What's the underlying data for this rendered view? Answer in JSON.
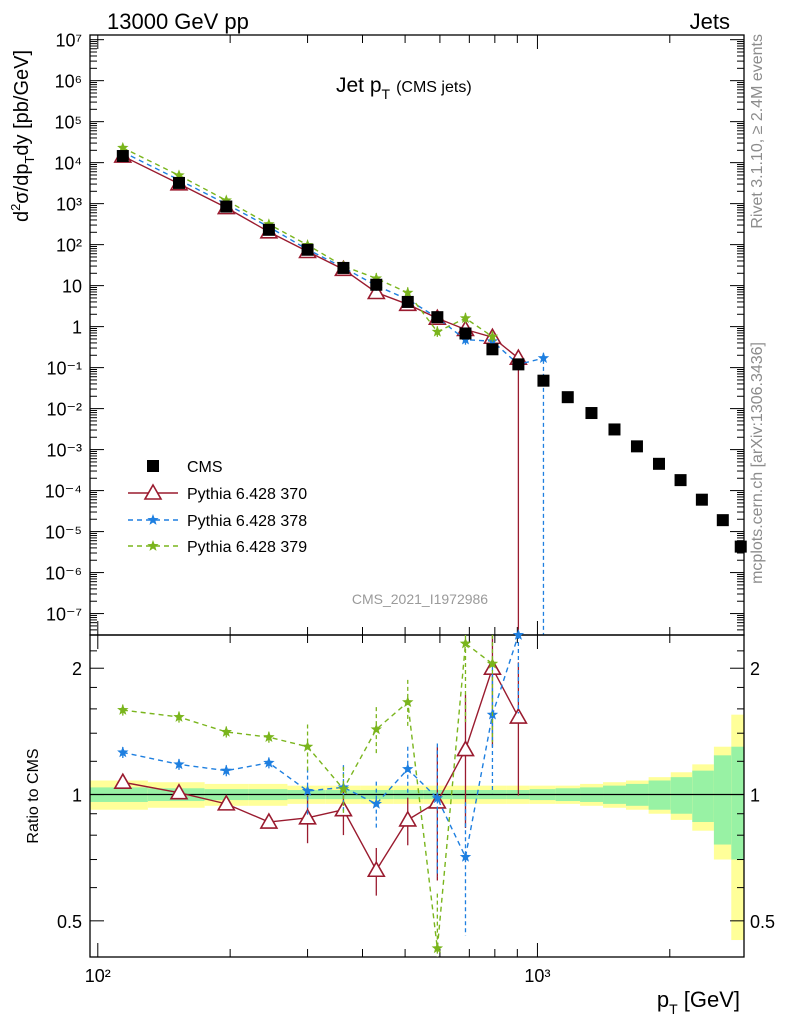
{
  "header": {
    "left": "13000 GeV pp",
    "right": "Jets"
  },
  "side_labels": {
    "rivet": "Rivet 3.1.10, ≥ 2.4M events",
    "mcplots": "mcplots.cern.ch [arXiv:1306.3436]"
  },
  "chart_data": [
    {
      "type": "scatter",
      "title": "Jet p",
      "title_sub": "T",
      "title_suffix": "(CMS jets)",
      "watermark": "CMS_2021_I1972986",
      "xscale": "log",
      "yscale": "log",
      "xlim": [
        96,
        2950
      ],
      "ylim": [
        3e-08,
        13000000.0
      ],
      "ylabel": "d²σ/dp_T dy [pb/GeV]",
      "ytick_labels": {
        "1e7": "10⁷",
        "1e6": "10⁶",
        "1e5": "10⁵",
        "1e4": "10⁴",
        "1e3": "10³",
        "1e2": "10²",
        "10": "10",
        "1": "1",
        "1e-1": "10⁻¹",
        "1e-2": "10⁻²",
        "1e-3": "10⁻³",
        "1e-4": "10⁻⁴",
        "1e-5": "10⁻⁵",
        "1e-6": "10⁻⁶",
        "1e-7": "10⁻⁷"
      },
      "legend_position": "lower-left",
      "series": [
        {
          "name": "CMS",
          "color": "#000000",
          "marker": "square",
          "x": [
            114,
            153,
            196,
            245,
            300,
            362,
            430,
            507,
            592,
            686,
            790,
            905,
            1032,
            1172,
            1327,
            1497,
            1684,
            1890,
            2116,
            2366,
            2640,
            2900
          ],
          "y": [
            14500,
            3200,
            850,
            230,
            75,
            27,
            10.5,
            4.0,
            1.7,
            0.68,
            0.28,
            0.12,
            0.048,
            0.019,
            0.0078,
            0.0031,
            0.0012,
            0.00045,
            0.00018,
            6e-05,
            1.9e-05,
            4.3e-06
          ]
        },
        {
          "name": "Pythia 6.428 370",
          "color": "#9a1b2f",
          "marker": "triangle",
          "x": [
            114,
            153,
            196,
            245,
            300,
            362,
            430,
            507,
            592,
            686,
            790,
            905
          ],
          "y": [
            14500,
            3050,
            800,
            205,
            68,
            25,
            6.8,
            3.5,
            1.6,
            0.85,
            0.55,
            0.17
          ]
        },
        {
          "name": "Pythia 6.428 378",
          "color": "#1e7fe0",
          "marker": "star",
          "x": [
            114,
            153,
            196,
            245,
            300,
            362,
            430,
            507,
            592,
            686,
            790,
            905,
            1032
          ],
          "y": [
            18200,
            3800,
            980,
            270,
            76,
            27.5,
            10,
            4.6,
            1.65,
            0.48,
            0.44,
            0.12,
            0.17
          ]
        },
        {
          "name": "Pythia 6.428 379",
          "color": "#7ab51d",
          "marker": "star",
          "x": [
            114,
            153,
            196,
            245,
            300,
            362,
            430,
            507,
            592,
            686,
            790
          ],
          "y": [
            23000,
            4900,
            1200,
            315,
            98,
            30,
            15,
            6.7,
            0.75,
            1.6,
            0.57
          ]
        }
      ]
    },
    {
      "type": "line",
      "ylabel": "Ratio to CMS",
      "xlabel": "p_T [GeV]",
      "xscale": "log",
      "yscale": "log",
      "xlim": [
        96,
        2950
      ],
      "ylim": [
        0.41,
        2.4
      ],
      "xtick_labels": {
        "100": "10²",
        "1000": "10³"
      },
      "ytick_labels": {
        "0.5": "0.5",
        "1": "1",
        "2": "2"
      },
      "uncertainty_bands": {
        "edges": [
          96,
          130,
          175,
          220,
          270,
          330,
          395,
          470,
          550,
          640,
          735,
          850,
          960,
          1100,
          1250,
          1410,
          1590,
          1790,
          2010,
          2250,
          2520,
          2760,
          2950
        ],
        "stat_sys_yellow": [
          0.08,
          0.07,
          0.06,
          0.06,
          0.05,
          0.05,
          0.05,
          0.05,
          0.05,
          0.05,
          0.05,
          0.05,
          0.05,
          0.05,
          0.06,
          0.07,
          0.08,
          0.1,
          0.13,
          0.18,
          0.3,
          0.55
        ],
        "stat_green": [
          0.04,
          0.035,
          0.03,
          0.03,
          0.025,
          0.025,
          0.025,
          0.025,
          0.025,
          0.025,
          0.025,
          0.025,
          0.03,
          0.035,
          0.04,
          0.05,
          0.06,
          0.08,
          0.1,
          0.14,
          0.24,
          0.3
        ]
      },
      "series": [
        {
          "name": "Pythia 6.428 370",
          "x": [
            114,
            153,
            196,
            245,
            300,
            362,
            430,
            507,
            592,
            686,
            790,
            905
          ],
          "y": [
            1.07,
            1.01,
            0.95,
            0.86,
            0.88,
            0.92,
            0.66,
            0.87,
            0.96,
            1.28,
            2.0,
            1.53
          ]
        },
        {
          "name": "Pythia 6.428 378",
          "x": [
            114,
            153,
            196,
            245,
            300,
            362,
            430,
            507,
            592,
            686,
            790,
            905
          ],
          "y": [
            1.26,
            1.18,
            1.14,
            1.19,
            1.02,
            1.04,
            0.95,
            1.15,
            0.98,
            0.71,
            1.55,
            2.4
          ]
        },
        {
          "name": "Pythia 6.428 379",
          "x": [
            114,
            153,
            196,
            245,
            300,
            362,
            430,
            507,
            592,
            686,
            790
          ],
          "y": [
            1.59,
            1.53,
            1.41,
            1.37,
            1.3,
            1.03,
            1.43,
            1.66,
            0.43,
            2.29,
            2.05
          ]
        }
      ]
    }
  ]
}
